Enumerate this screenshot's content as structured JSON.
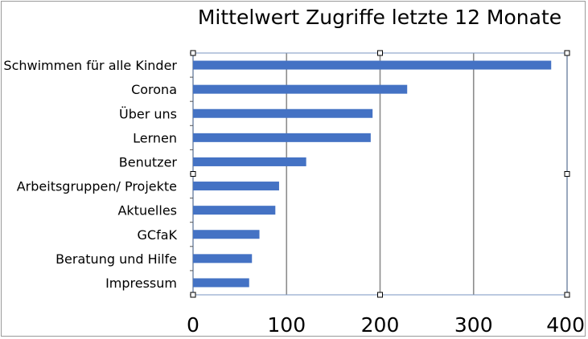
{
  "chart_data": {
    "type": "bar",
    "orientation": "horizontal",
    "title": "Mittelwert Zugriffe letzte 12 Monate",
    "categories": [
      "Schwimmen für alle Kinder",
      "Corona",
      "Über uns",
      "Lernen",
      "Benutzer",
      "Arbeitsgruppen/ Projekte",
      "Aktuelles",
      "GCfaK",
      "Beratung und Hilfe",
      "Impressum"
    ],
    "values": [
      383,
      229,
      192,
      190,
      121,
      92,
      88,
      71,
      63,
      60
    ],
    "xlim": [
      0,
      400
    ],
    "xticks": [
      "0",
      "100",
      "200",
      "300",
      "400"
    ],
    "grid": true,
    "legend": "none",
    "bar_color": "#4472c4"
  }
}
